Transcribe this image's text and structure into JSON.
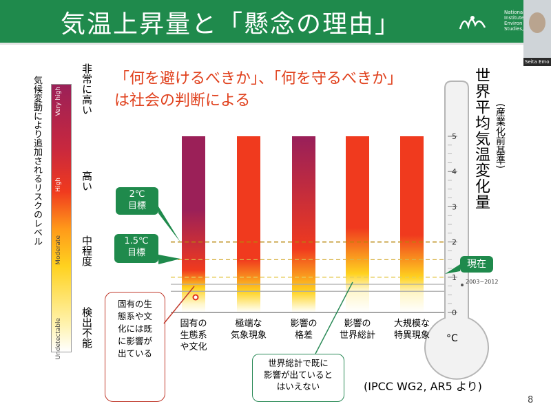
{
  "slide": {
    "title": "気温上昇量と「懸念の理由」",
    "institute_lines": [
      "National",
      "Institute",
      "Environ",
      "Studies,"
    ],
    "presenter": "Seita Emo",
    "page_number": "8",
    "source": "(IPCC WG2, AR5 より)"
  },
  "headline": {
    "line1": "「何を避けるべきか」、「何を守るべきか」",
    "line2": "は社会の判断による"
  },
  "legend": {
    "axis_title": "気候変動により追加されるリスクのレベル",
    "levels": [
      "Undetectable",
      "Moderate",
      "High",
      "Very high"
    ],
    "side_labels": [
      "検出不能",
      "中程度",
      "高い",
      "非常に高い"
    ]
  },
  "markers": {
    "two_c": "2℃\n目標",
    "one_five_c": "1.5℃\n目標",
    "now": "現在",
    "now_period": "2003−2012"
  },
  "callouts": {
    "left": [
      "固有の生",
      "態系や文",
      "化には既",
      "に影響が",
      "出ている"
    ],
    "bottom": [
      "世界総計で既に",
      "影響が出ていると",
      "はいえない"
    ]
  },
  "thermometer": {
    "title": "世界平均気温変化量",
    "subtitle": "(産業化前基準)",
    "unit": "°C"
  },
  "colors": {
    "header_green": "#1f8a4c",
    "undetectable": "#ffffff",
    "moderate": "#ffd21f",
    "high": "#f03a1e",
    "very_high": "#9b2058"
  },
  "chart_data": {
    "type": "heatmap",
    "ylabel": "世界平均気温変化量",
    "ylim": [
      0,
      5
    ],
    "y_ticks": [
      "0",
      "1",
      "2",
      "3",
      "4",
      "5"
    ],
    "categories": [
      "固有の\n生態系\nや文化",
      "極端な\n気象現象",
      "影響の\n格差",
      "影響の\n世界総計",
      "大規模な\n特異現象"
    ],
    "series": [
      {
        "name": "Very high",
        "values": [
          2.0,
          0,
          4.0,
          0,
          0
        ]
      },
      {
        "name": "High",
        "values": [
          1.2,
          1.5,
          1.8,
          2.4,
          2.2
        ]
      },
      {
        "name": "Moderate",
        "values": [
          0.7,
          0.6,
          0.6,
          1.1,
          1.0
        ]
      }
    ],
    "reference_lines": [
      {
        "label": "2℃ 目標",
        "value": 2.0
      },
      {
        "label": "1.5℃ 目標",
        "value": 1.5
      },
      {
        "label": "現在",
        "value": 1.0
      }
    ],
    "current_range": [
      0.6,
      0.8
    ]
  }
}
